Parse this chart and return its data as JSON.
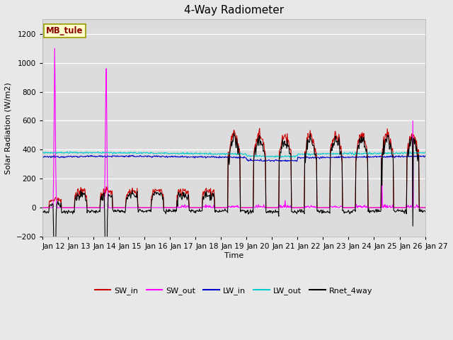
{
  "title": "4-Way Radiometer",
  "xlabel": "Time",
  "ylabel": "Solar Radiation (W/m2)",
  "annotation": "MB_tule",
  "ylim": [
    -200,
    1300
  ],
  "yticks": [
    -200,
    0,
    200,
    400,
    600,
    800,
    1000,
    1200
  ],
  "x_labels": [
    "Jan 12",
    "Jan 13",
    "Jan 14",
    "Jan 15",
    "Jan 16",
    "Jan 17",
    "Jan 18",
    "Jan 19",
    "Jan 20",
    "Jan 21",
    "Jan 22",
    "Jan 23",
    "Jan 24",
    "Jan 25",
    "Jan 26",
    "Jan 27"
  ],
  "colors": {
    "SW_in": "#cc0000",
    "SW_out": "#ff00ff",
    "LW_in": "#0000cc",
    "LW_out": "#00cccc",
    "Rnet_4way": "#000000"
  },
  "title_fontsize": 11,
  "label_fontsize": 8,
  "tick_fontsize": 7.5,
  "fig_facecolor": "#f0f0f0",
  "ax_facecolor": "#e8e8e8"
}
